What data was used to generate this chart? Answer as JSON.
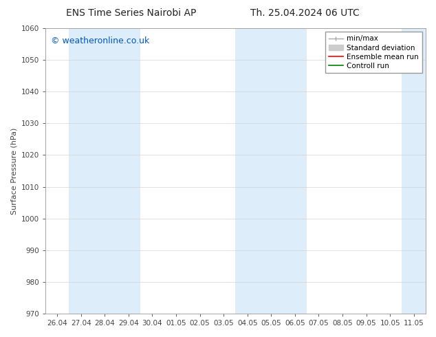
{
  "title_left": "ENS Time Series Nairobi AP",
  "title_right": "Th. 25.04.2024 06 UTC",
  "ylabel": "Surface Pressure (hPa)",
  "ylim": [
    970,
    1060
  ],
  "yticks": [
    970,
    980,
    990,
    1000,
    1010,
    1020,
    1030,
    1040,
    1050,
    1060
  ],
  "x_tick_labels": [
    "26.04",
    "27.04",
    "28.04",
    "29.04",
    "30.04",
    "01.05",
    "02.05",
    "03.05",
    "04.05",
    "05.05",
    "06.05",
    "07.05",
    "08.05",
    "09.05",
    "10.05",
    "11.05"
  ],
  "x_tick_positions": [
    0,
    1,
    2,
    3,
    4,
    5,
    6,
    7,
    8,
    9,
    10,
    11,
    12,
    13,
    14,
    15
  ],
  "xlim": [
    -0.5,
    15.5
  ],
  "shaded_bands": [
    {
      "x_start": 0.5,
      "x_end": 3.5,
      "color": "#ddeefa"
    },
    {
      "x_start": 7.5,
      "x_end": 10.5,
      "color": "#ddeefa"
    },
    {
      "x_start": 14.5,
      "x_end": 15.5,
      "color": "#ddeefa"
    }
  ],
  "watermark_text": "© weatheronline.co.uk",
  "watermark_color": "#0055cc",
  "watermark_fontsize": 9,
  "bg_color": "#ffffff",
  "plot_bg_color": "#ffffff",
  "title_fontsize": 10,
  "axis_label_fontsize": 8,
  "tick_fontsize": 7.5,
  "legend_fontsize": 7.5,
  "grid_color": "#cccccc",
  "grid_lw": 0.4,
  "spine_color": "#999999",
  "tick_color": "#444444",
  "minmax_color": "#aaaaaa",
  "stddev_color": "#cccccc",
  "ensemble_color": "#ff0000",
  "control_color": "#008000"
}
